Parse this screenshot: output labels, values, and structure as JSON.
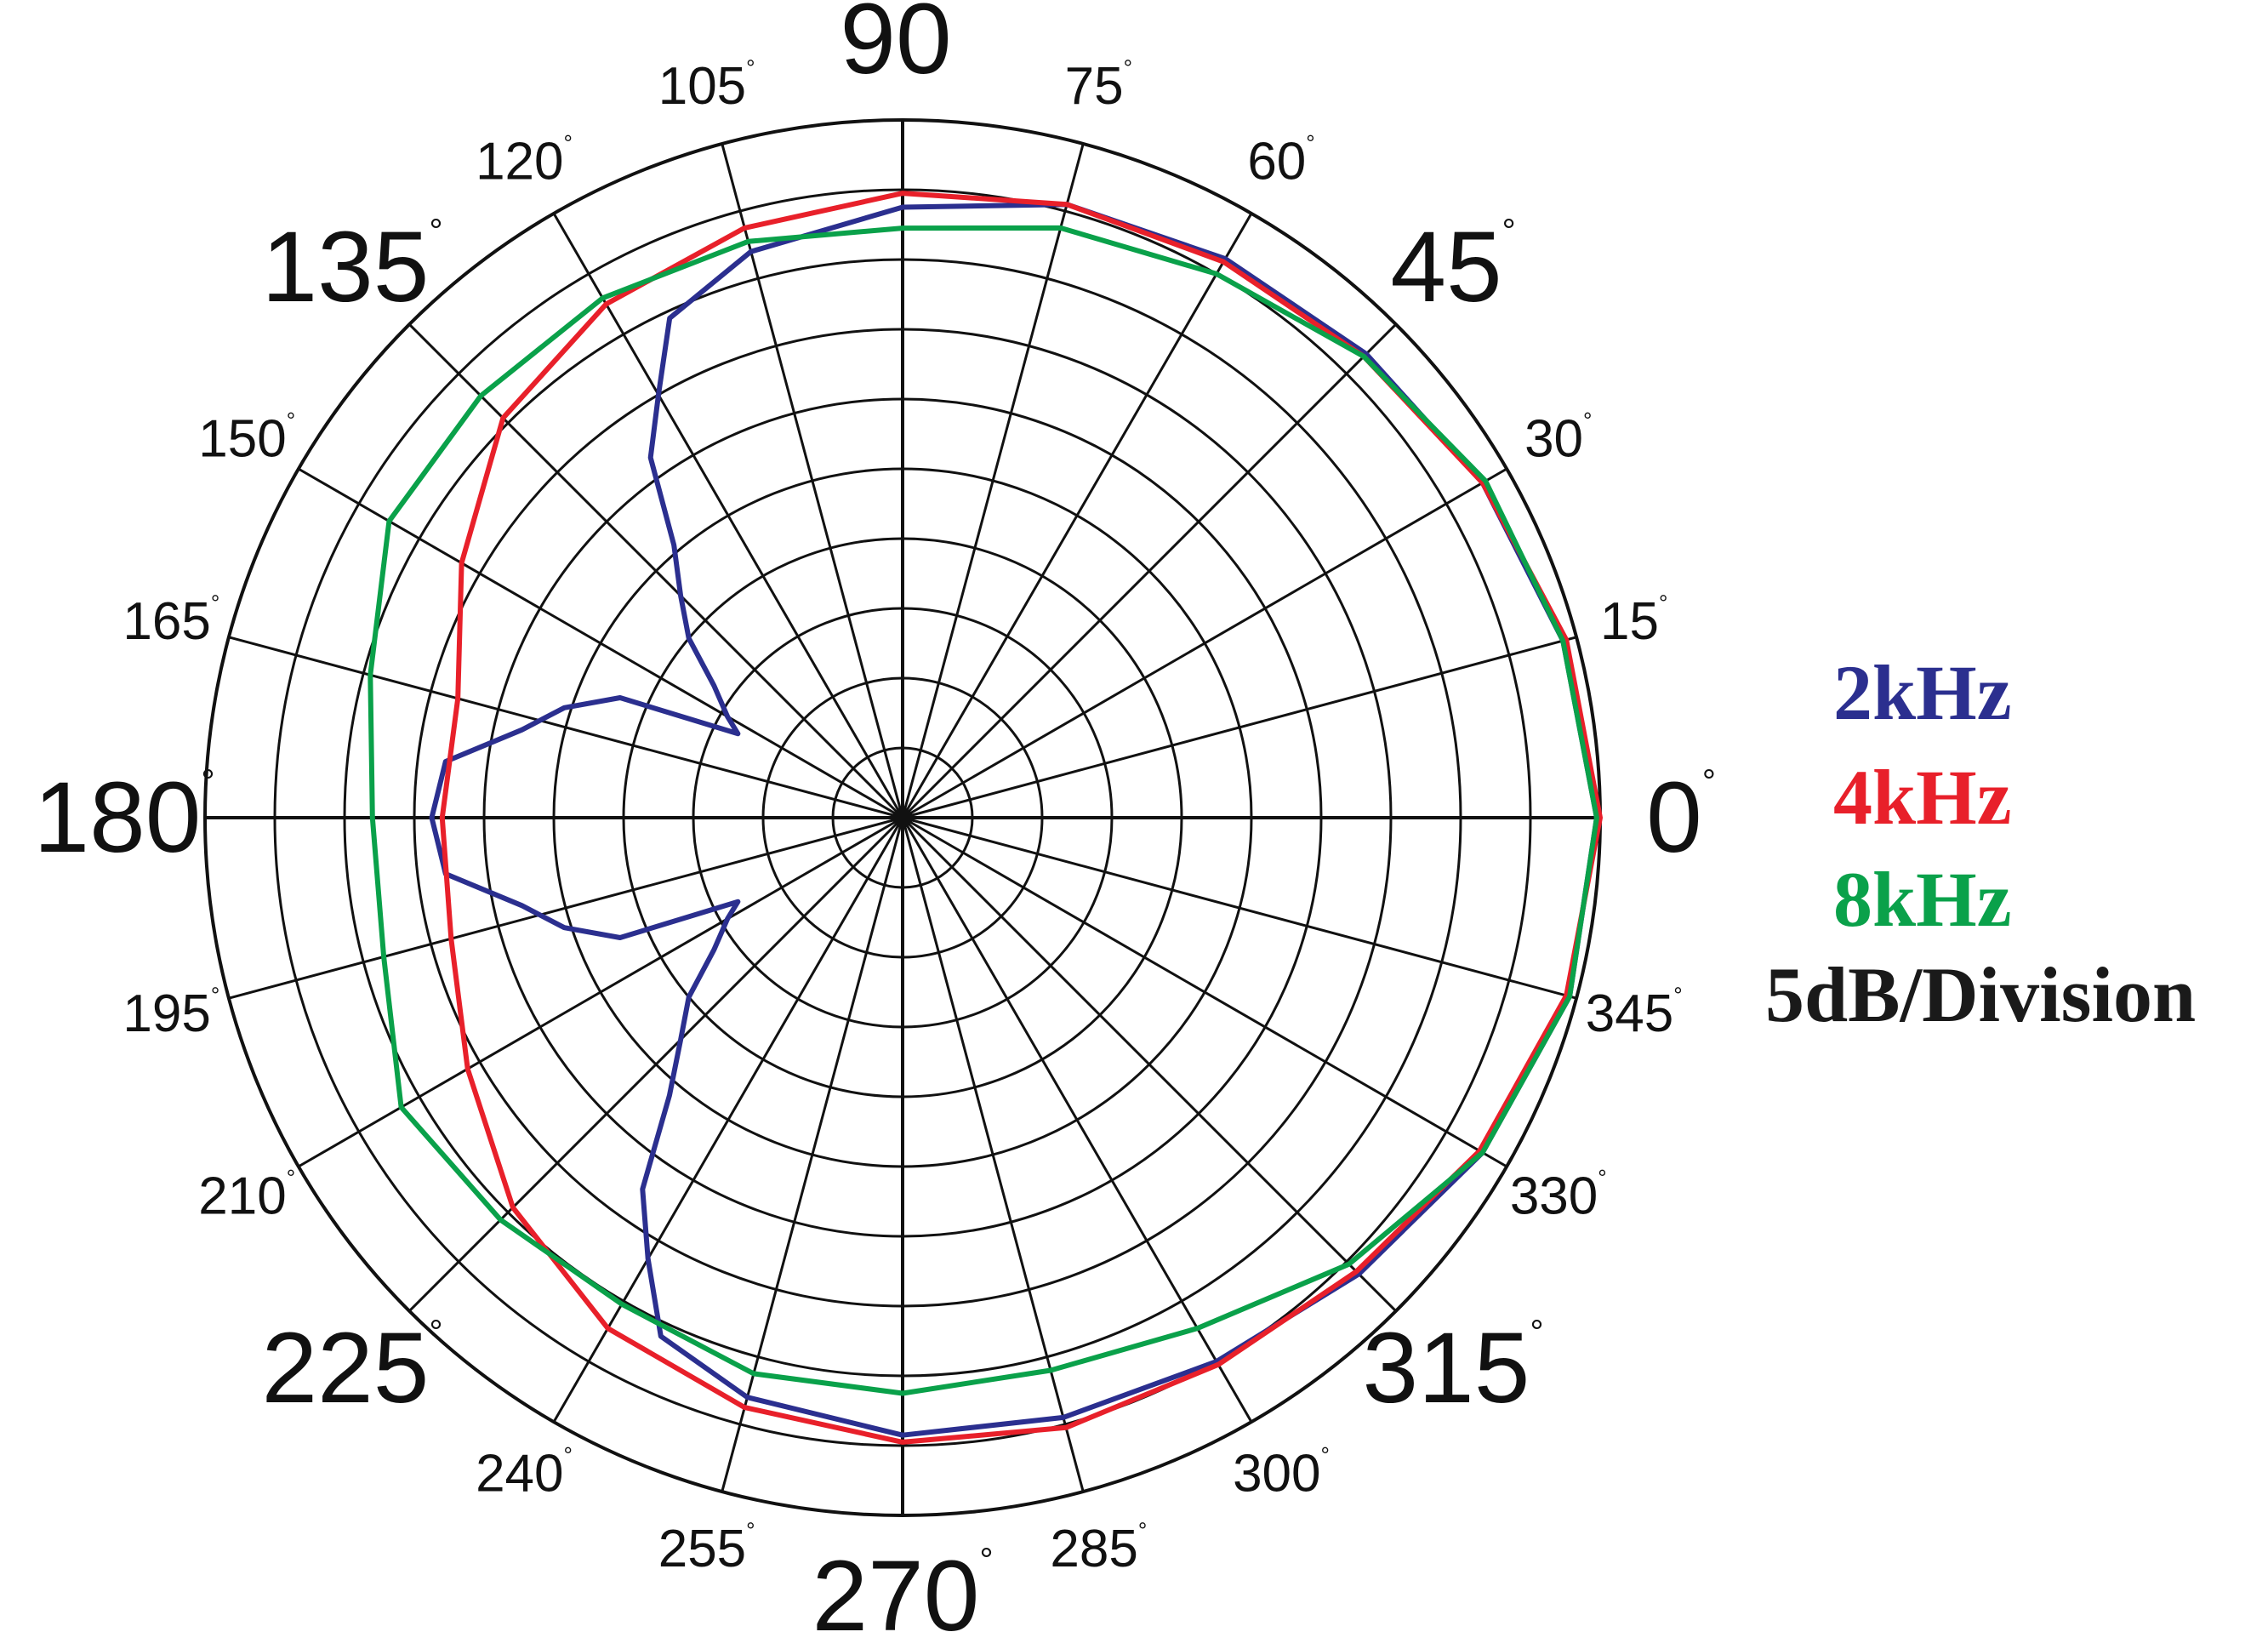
{
  "chart_data": {
    "type": "polar-line",
    "title": "",
    "radial_scale_label": "5dB/Division",
    "radial_divisions": 10,
    "angle_step_deg": 15,
    "angle_labels": [
      {
        "angle": 0,
        "text": "0",
        "major": true
      },
      {
        "angle": 15,
        "text": "15",
        "major": false
      },
      {
        "angle": 30,
        "text": "30",
        "major": false
      },
      {
        "angle": 45,
        "text": "45",
        "major": true
      },
      {
        "angle": 60,
        "text": "60",
        "major": false
      },
      {
        "angle": 75,
        "text": "75",
        "major": false
      },
      {
        "angle": 90,
        "text": "90",
        "major": true
      },
      {
        "angle": 105,
        "text": "105",
        "major": false
      },
      {
        "angle": 120,
        "text": "120",
        "major": false
      },
      {
        "angle": 135,
        "text": "135",
        "major": true
      },
      {
        "angle": 150,
        "text": "150",
        "major": false
      },
      {
        "angle": 165,
        "text": "165",
        "major": false
      },
      {
        "angle": 180,
        "text": "180",
        "major": true
      },
      {
        "angle": 195,
        "text": "195",
        "major": false
      },
      {
        "angle": 210,
        "text": "210",
        "major": false
      },
      {
        "angle": 225,
        "text": "225",
        "major": true
      },
      {
        "angle": 240,
        "text": "240",
        "major": false
      },
      {
        "angle": 255,
        "text": "255",
        "major": false
      },
      {
        "angle": 270,
        "text": "270",
        "major": true
      },
      {
        "angle": 285,
        "text": "285",
        "major": false
      },
      {
        "angle": 300,
        "text": "300",
        "major": false
      },
      {
        "angle": 315,
        "text": "315",
        "major": true
      },
      {
        "angle": 330,
        "text": "330",
        "major": false
      },
      {
        "angle": 345,
        "text": "345",
        "major": false
      }
    ],
    "radius_unit": "divisions from center (10 = outer ring)",
    "series": [
      {
        "name": "2kHz",
        "color": "#2b2f8f",
        "points": [
          [
            0,
            9.95
          ],
          [
            15,
            9.8
          ],
          [
            30,
            9.6
          ],
          [
            45,
            9.4
          ],
          [
            60,
            9.25
          ],
          [
            75,
            9.1
          ],
          [
            90,
            8.75
          ],
          [
            105,
            8.4
          ],
          [
            115,
            7.9
          ],
          [
            120,
            7.0
          ],
          [
            125,
            6.3
          ],
          [
            130,
            5.1
          ],
          [
            135,
            4.5
          ],
          [
            140,
            4.0
          ],
          [
            145,
            3.3
          ],
          [
            150,
            2.9
          ],
          [
            153,
            2.65
          ],
          [
            157,
            4.4
          ],
          [
            162,
            5.1
          ],
          [
            167,
            5.6
          ],
          [
            173,
            6.6
          ],
          [
            180,
            6.75
          ],
          [
            187,
            6.6
          ],
          [
            193,
            5.6
          ],
          [
            198,
            5.1
          ],
          [
            203,
            4.4
          ],
          [
            207,
            2.65
          ],
          [
            210,
            2.9
          ],
          [
            215,
            3.3
          ],
          [
            220,
            4.0
          ],
          [
            225,
            4.5
          ],
          [
            230,
            5.2
          ],
          [
            235,
            6.5
          ],
          [
            240,
            7.3
          ],
          [
            245,
            8.2
          ],
          [
            255,
            8.6
          ],
          [
            270,
            8.85
          ],
          [
            285,
            8.9
          ],
          [
            300,
            9.0
          ],
          [
            315,
            9.25
          ],
          [
            330,
            9.6
          ],
          [
            345,
            9.9
          ]
        ]
      },
      {
        "name": "4kHz",
        "color": "#e8202a",
        "points": [
          [
            0,
            10.0
          ],
          [
            15,
            9.85
          ],
          [
            30,
            9.6
          ],
          [
            45,
            9.35
          ],
          [
            60,
            9.2
          ],
          [
            75,
            9.1
          ],
          [
            90,
            8.95
          ],
          [
            105,
            8.75
          ],
          [
            120,
            8.5
          ],
          [
            135,
            8.1
          ],
          [
            150,
            7.3
          ],
          [
            165,
            6.6
          ],
          [
            180,
            6.6
          ],
          [
            195,
            6.7
          ],
          [
            210,
            7.2
          ],
          [
            225,
            7.9
          ],
          [
            240,
            8.45
          ],
          [
            255,
            8.75
          ],
          [
            270,
            8.95
          ],
          [
            285,
            9.05
          ],
          [
            300,
            9.05
          ],
          [
            315,
            9.2
          ],
          [
            330,
            9.55
          ],
          [
            345,
            9.85
          ]
        ]
      },
      {
        "name": "8kHz",
        "color": "#0aa14a",
        "points": [
          [
            0,
            9.95
          ],
          [
            15,
            9.8
          ],
          [
            30,
            9.65
          ],
          [
            45,
            9.35
          ],
          [
            60,
            9.0
          ],
          [
            75,
            8.75
          ],
          [
            90,
            8.45
          ],
          [
            105,
            8.55
          ],
          [
            120,
            8.6
          ],
          [
            135,
            8.55
          ],
          [
            150,
            8.5
          ],
          [
            165,
            7.9
          ],
          [
            180,
            7.6
          ],
          [
            195,
            7.7
          ],
          [
            210,
            8.3
          ],
          [
            225,
            8.15
          ],
          [
            240,
            8.05
          ],
          [
            255,
            8.25
          ],
          [
            270,
            8.25
          ],
          [
            285,
            8.2
          ],
          [
            300,
            8.45
          ],
          [
            315,
            9.05
          ],
          [
            330,
            9.6
          ],
          [
            345,
            9.9
          ]
        ]
      }
    ],
    "legend": {
      "placement": "right",
      "items": [
        "2kHz",
        "4kHz",
        "8kHz"
      ],
      "footer": "5dB/Division"
    }
  }
}
